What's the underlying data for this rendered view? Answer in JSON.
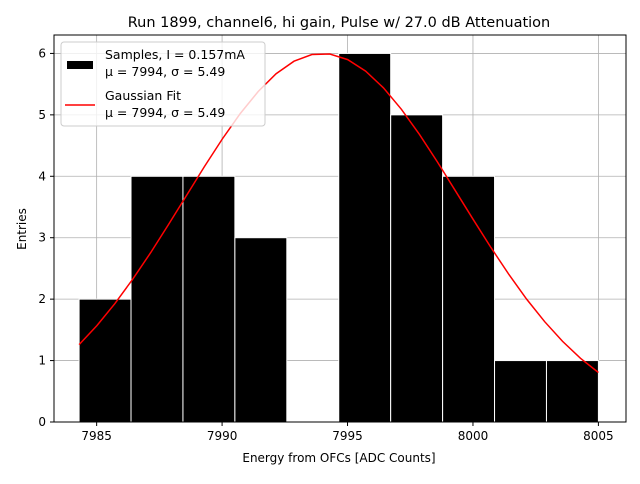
{
  "chart_data": {
    "type": "bar",
    "title": "Run 1899, channel6, hi gain, Pulse w/ 27.0 dB Attenuation",
    "xlabel": "Energy from OFCs [ADC Counts]",
    "ylabel": "Entries",
    "xlim": [
      7983.3,
      8006.1
    ],
    "ylim": [
      0,
      6.3
    ],
    "xticks": [
      "7985",
      "7990",
      "7995",
      "8000",
      "8005"
    ],
    "yticks": [
      "0",
      "1",
      "2",
      "3",
      "4",
      "5",
      "6"
    ],
    "grid": true,
    "legend_placement": "upper-left",
    "histogram": {
      "bin_edges": [
        7984.3,
        7986.37,
        7988.44,
        7990.51,
        7992.58,
        7994.65,
        7996.72,
        7998.79,
        8000.86,
        8002.93,
        8005.0
      ],
      "counts": [
        2,
        4,
        4,
        3,
        0,
        6,
        5,
        4,
        1,
        1
      ],
      "color": "#000000",
      "edge_color": "#ffffff"
    },
    "fit": {
      "mu": 7994,
      "sigma": 5.49,
      "amplitude": 6.0,
      "x_range": [
        7984.3,
        8005.0
      ],
      "color": "#ff0000"
    },
    "legend": [
      {
        "line1": "Samples, I = 0.157mA",
        "line2": "μ = 7994, σ = 5.49"
      },
      {
        "line1": "Gaussian Fit",
        "line2": "μ = 7994, σ = 5.49"
      }
    ]
  }
}
